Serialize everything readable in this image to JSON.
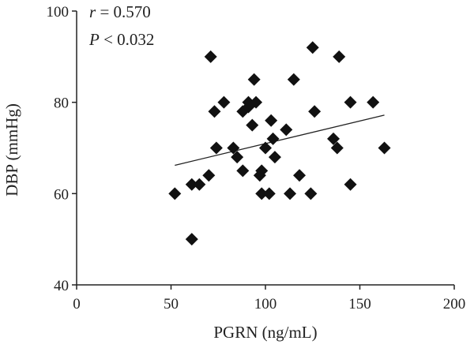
{
  "chart_data": {
    "type": "scatter",
    "title": "",
    "xlabel": "PGRN (ng/mL)",
    "ylabel": "DBP (mmHg)",
    "xlim": [
      0,
      200
    ],
    "ylim": [
      40,
      100
    ],
    "xticks": [
      0,
      50,
      100,
      150,
      200
    ],
    "yticks": [
      40,
      60,
      80,
      100
    ],
    "grid": false,
    "annotations": [
      {
        "italic": "r",
        "rest": " = 0.570"
      },
      {
        "italic": "P",
        "rest": " < 0.032"
      }
    ],
    "trendline": {
      "x": [
        52,
        163
      ],
      "y": [
        66.2,
        77.2
      ]
    },
    "series": [
      {
        "marker": "diamond",
        "color": "#111111",
        "points": [
          [
            52,
            60
          ],
          [
            61,
            50
          ],
          [
            61,
            62
          ],
          [
            65,
            62
          ],
          [
            70,
            64
          ],
          [
            71,
            90
          ],
          [
            73,
            78
          ],
          [
            74,
            70
          ],
          [
            78,
            80
          ],
          [
            83,
            70
          ],
          [
            85,
            68
          ],
          [
            88,
            65
          ],
          [
            88,
            78
          ],
          [
            91,
            79
          ],
          [
            91,
            80
          ],
          [
            93,
            75
          ],
          [
            94,
            85
          ],
          [
            95,
            80
          ],
          [
            97,
            64
          ],
          [
            98,
            60
          ],
          [
            98,
            65
          ],
          [
            100,
            70
          ],
          [
            102,
            60
          ],
          [
            103,
            76
          ],
          [
            104,
            72
          ],
          [
            105,
            68
          ],
          [
            111,
            74
          ],
          [
            113,
            60
          ],
          [
            115,
            85
          ],
          [
            118,
            64
          ],
          [
            124,
            60
          ],
          [
            125,
            92
          ],
          [
            126,
            78
          ],
          [
            136,
            72
          ],
          [
            138,
            70
          ],
          [
            139,
            90
          ],
          [
            145,
            62
          ],
          [
            145,
            80
          ],
          [
            157,
            80
          ],
          [
            163,
            70
          ]
        ]
      }
    ]
  }
}
